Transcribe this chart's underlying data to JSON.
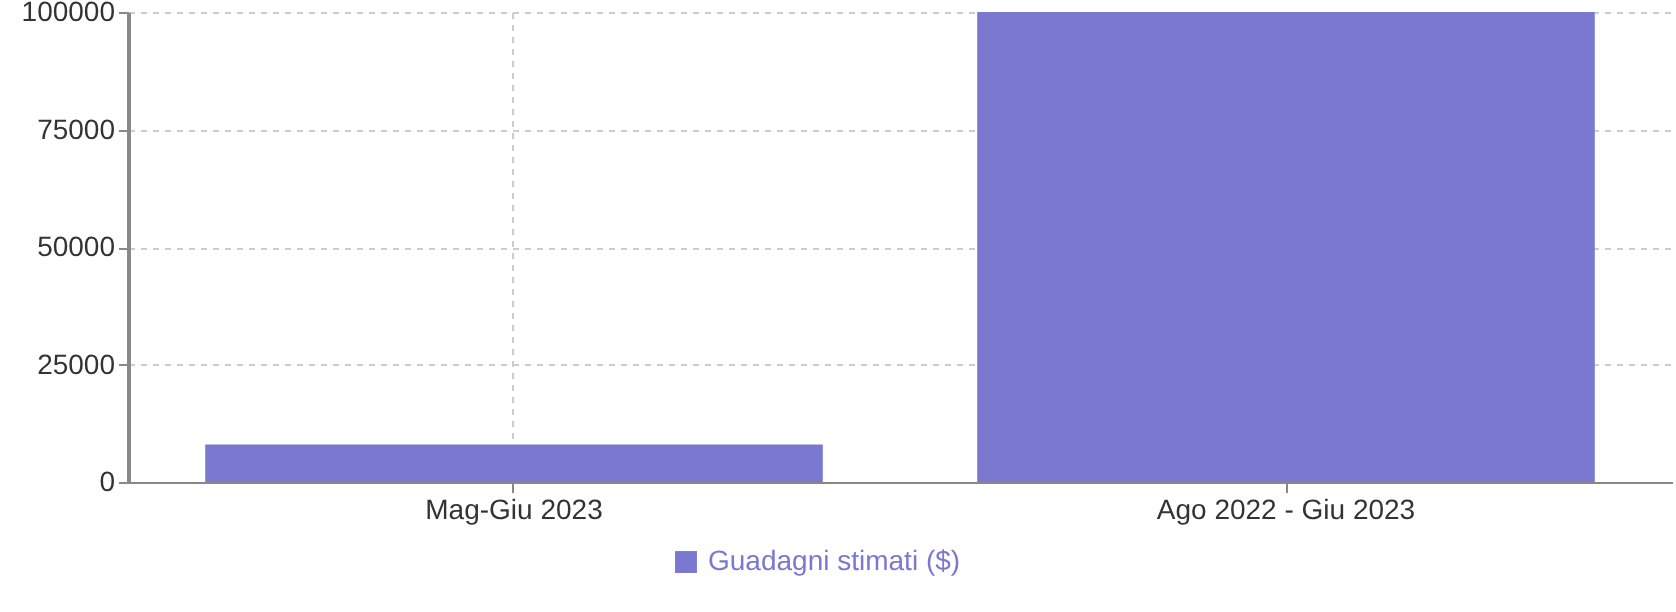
{
  "chart_data": {
    "type": "bar",
    "categories": [
      "Mag-Giu 2023",
      "Ago 2022 - Giu 2023"
    ],
    "series": [
      {
        "name": "Guadagni stimati ($)",
        "color": "#7b79cf",
        "values": [
          8000,
          100000
        ]
      }
    ],
    "ylim": [
      0,
      100000
    ],
    "yticks": [
      0,
      25000,
      50000,
      75000,
      100000
    ],
    "grid": true,
    "legend": "bottom"
  }
}
